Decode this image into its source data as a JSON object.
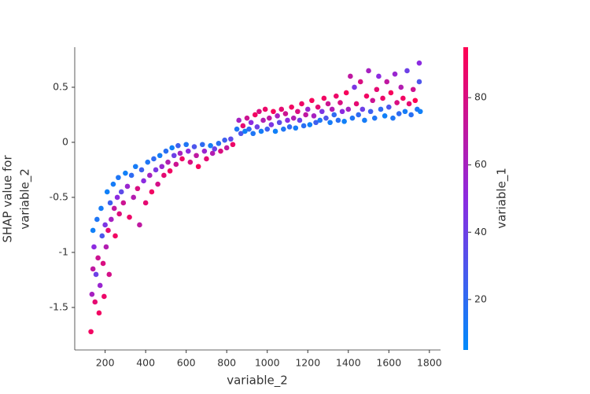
{
  "chart_data": {
    "type": "scatter",
    "xlabel": "variable_2",
    "ylabel": [
      "SHAP value for",
      "variable_2"
    ],
    "xlim": [
      50,
      1855
    ],
    "ylim": [
      -1.886,
      0.864
    ],
    "xticks": [
      200,
      400,
      600,
      800,
      1000,
      1200,
      1400,
      1600,
      1800
    ],
    "yticks": [
      -1.5,
      -1.0,
      -0.5,
      0.0,
      0.5
    ],
    "colorbar": {
      "label": "variable_1",
      "clim": [
        5,
        95
      ],
      "ticks": [
        20,
        40,
        60,
        80
      ],
      "colormap": [
        "#008bfb",
        "#8c2be0",
        "#ff0052"
      ]
    },
    "series": [
      {
        "x": [
          130,
          135,
          140,
          140,
          145,
          150,
          155,
          160,
          165,
          170,
          175,
          180,
          185,
          190,
          195,
          200,
          205,
          210,
          215,
          220,
          225,
          230,
          240,
          245,
          250,
          260,
          265,
          270,
          280,
          290,
          300,
          310,
          320,
          330,
          340,
          350,
          360,
          370,
          380,
          390,
          400,
          410,
          420,
          430,
          440,
          450,
          460,
          470,
          480,
          490,
          500,
          510,
          520,
          530,
          540,
          550,
          560,
          570,
          580,
          600,
          610,
          620,
          640,
          650,
          660,
          680,
          690,
          700,
          720,
          730,
          740,
          760,
          770,
          790,
          800,
          820,
          830,
          850,
          860,
          870,
          880,
          890,
          900,
          910,
          920,
          930,
          940,
          950,
          960,
          970,
          980,
          990,
          1000,
          1010,
          1020,
          1030,
          1040,
          1050,
          1060,
          1070,
          1080,
          1090,
          1100,
          1110,
          1120,
          1130,
          1140,
          1150,
          1160,
          1170,
          1180,
          1190,
          1200,
          1210,
          1220,
          1230,
          1240,
          1250,
          1260,
          1270,
          1280,
          1290,
          1300,
          1310,
          1320,
          1330,
          1340,
          1350,
          1360,
          1370,
          1380,
          1390,
          1400,
          1410,
          1420,
          1430,
          1440,
          1450,
          1460,
          1470,
          1480,
          1490,
          1500,
          1510,
          1520,
          1530,
          1540,
          1550,
          1560,
          1570,
          1580,
          1590,
          1600,
          1610,
          1620,
          1630,
          1640,
          1650,
          1660,
          1670,
          1680,
          1690,
          1700,
          1710,
          1720,
          1730,
          1740,
          1750,
          1750,
          1755
        ],
        "values": [
          -1.72,
          -1.38,
          -1.15,
          -0.8,
          -0.95,
          -1.45,
          -1.2,
          -0.7,
          -1.05,
          -1.55,
          -1.3,
          -0.6,
          -0.85,
          -1.1,
          -1.4,
          -0.75,
          -0.95,
          -0.45,
          -0.8,
          -1.2,
          -0.55,
          -0.7,
          -0.38,
          -0.6,
          -0.85,
          -0.5,
          -0.32,
          -0.65,
          -0.45,
          -0.55,
          -0.28,
          -0.4,
          -0.68,
          -0.3,
          -0.5,
          -0.22,
          -0.42,
          -0.75,
          -0.25,
          -0.35,
          -0.55,
          -0.18,
          -0.3,
          -0.45,
          -0.15,
          -0.25,
          -0.38,
          -0.12,
          -0.22,
          -0.3,
          -0.08,
          -0.18,
          -0.26,
          -0.05,
          -0.12,
          -0.2,
          -0.03,
          -0.1,
          -0.15,
          -0.02,
          -0.08,
          -0.18,
          -0.04,
          -0.12,
          -0.22,
          -0.02,
          -0.08,
          -0.15,
          -0.03,
          -0.1,
          -0.06,
          -0.01,
          -0.08,
          0.02,
          -0.05,
          0.03,
          -0.02,
          0.12,
          0.2,
          0.08,
          0.15,
          0.1,
          0.22,
          0.12,
          0.18,
          0.08,
          0.25,
          0.14,
          0.28,
          0.1,
          0.2,
          0.3,
          0.12,
          0.22,
          0.16,
          0.28,
          0.1,
          0.24,
          0.18,
          0.3,
          0.12,
          0.26,
          0.2,
          0.14,
          0.32,
          0.22,
          0.13,
          0.28,
          0.2,
          0.35,
          0.15,
          0.25,
          0.3,
          0.16,
          0.38,
          0.24,
          0.18,
          0.32,
          0.2,
          0.28,
          0.4,
          0.22,
          0.35,
          0.18,
          0.3,
          0.25,
          0.42,
          0.2,
          0.36,
          0.28,
          0.19,
          0.45,
          0.3,
          0.6,
          0.22,
          0.5,
          0.35,
          0.25,
          0.55,
          0.3,
          0.2,
          0.42,
          0.65,
          0.28,
          0.38,
          0.22,
          0.48,
          0.6,
          0.3,
          0.4,
          0.24,
          0.55,
          0.32,
          0.45,
          0.22,
          0.62,
          0.36,
          0.26,
          0.5,
          0.4,
          0.28,
          0.65,
          0.35,
          0.25,
          0.48,
          0.38,
          0.3,
          0.72,
          0.55,
          0.28
        ],
        "color_values": [
          90,
          60,
          70,
          10,
          50,
          85,
          40,
          15,
          75,
          90,
          55,
          12,
          30,
          80,
          88,
          45,
          65,
          10,
          85,
          78,
          25,
          60,
          12,
          70,
          90,
          50,
          15,
          82,
          35,
          75,
          10,
          55,
          88,
          20,
          65,
          12,
          80,
          70,
          25,
          50,
          85,
          15,
          60,
          90,
          20,
          45,
          78,
          12,
          55,
          85,
          18,
          65,
          90,
          10,
          40,
          75,
          25,
          60,
          88,
          15,
          50,
          80,
          30,
          70,
          92,
          20,
          55,
          85,
          12,
          65,
          40,
          18,
          80,
          25,
          70,
          35,
          88,
          15,
          60,
          30,
          85,
          10,
          75,
          20,
          50,
          15,
          90,
          40,
          80,
          12,
          65,
          88,
          25,
          70,
          45,
          92,
          10,
          60,
          35,
          85,
          15,
          75,
          50,
          20,
          90,
          65,
          12,
          80,
          40,
          88,
          18,
          70,
          55,
          10,
          92,
          60,
          25,
          85,
          15,
          45,
          90,
          30,
          75,
          12,
          65,
          20,
          88,
          18,
          80,
          50,
          10,
          92,
          60,
          70,
          15,
          45,
          85,
          20,
          80,
          40,
          12,
          90,
          60,
          25,
          75,
          15,
          85,
          50,
          20,
          88,
          10,
          70,
          30,
          92,
          15,
          55,
          80,
          20,
          65,
          90,
          12,
          40,
          85,
          18,
          75,
          95,
          15,
          50,
          30,
          10
        ]
      }
    ]
  }
}
